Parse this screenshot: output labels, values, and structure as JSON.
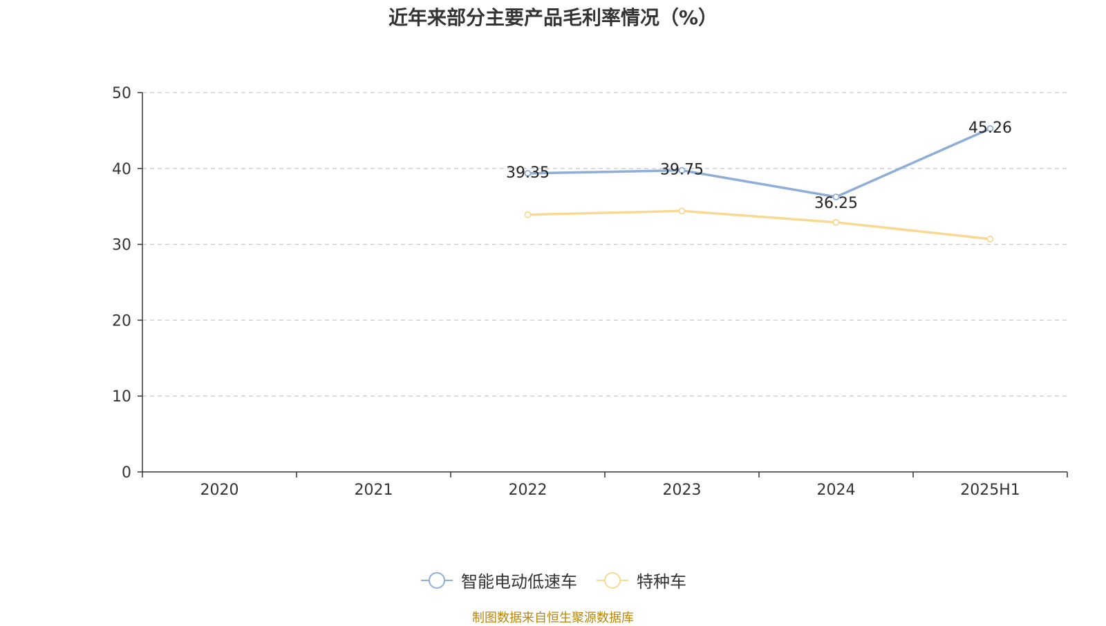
{
  "chart_data": {
    "type": "line",
    "title": "近年来部分主要产品毛利率情况（%）",
    "categories": [
      "2020",
      "2021",
      "2022",
      "2023",
      "2024",
      "2025H1"
    ],
    "ylim": [
      0,
      50
    ],
    "yticks": [
      0,
      10,
      20,
      30,
      40,
      50
    ],
    "grid": true,
    "legend_position": "bottom",
    "series": [
      {
        "name": "智能电动低速车",
        "color": "#8eaed8",
        "values": [
          null,
          null,
          39.35,
          39.75,
          36.25,
          45.26
        ],
        "labels": [
          "",
          "",
          "39.35",
          "39.75",
          "36.25",
          "45.26"
        ]
      },
      {
        "name": "特种车",
        "color": "#f9d894",
        "values": [
          null,
          null,
          33.9,
          34.4,
          32.9,
          30.7
        ],
        "labels": [
          "",
          "",
          "",
          "",
          "",
          ""
        ]
      }
    ]
  },
  "source": "制图数据来自恒生聚源数据库"
}
